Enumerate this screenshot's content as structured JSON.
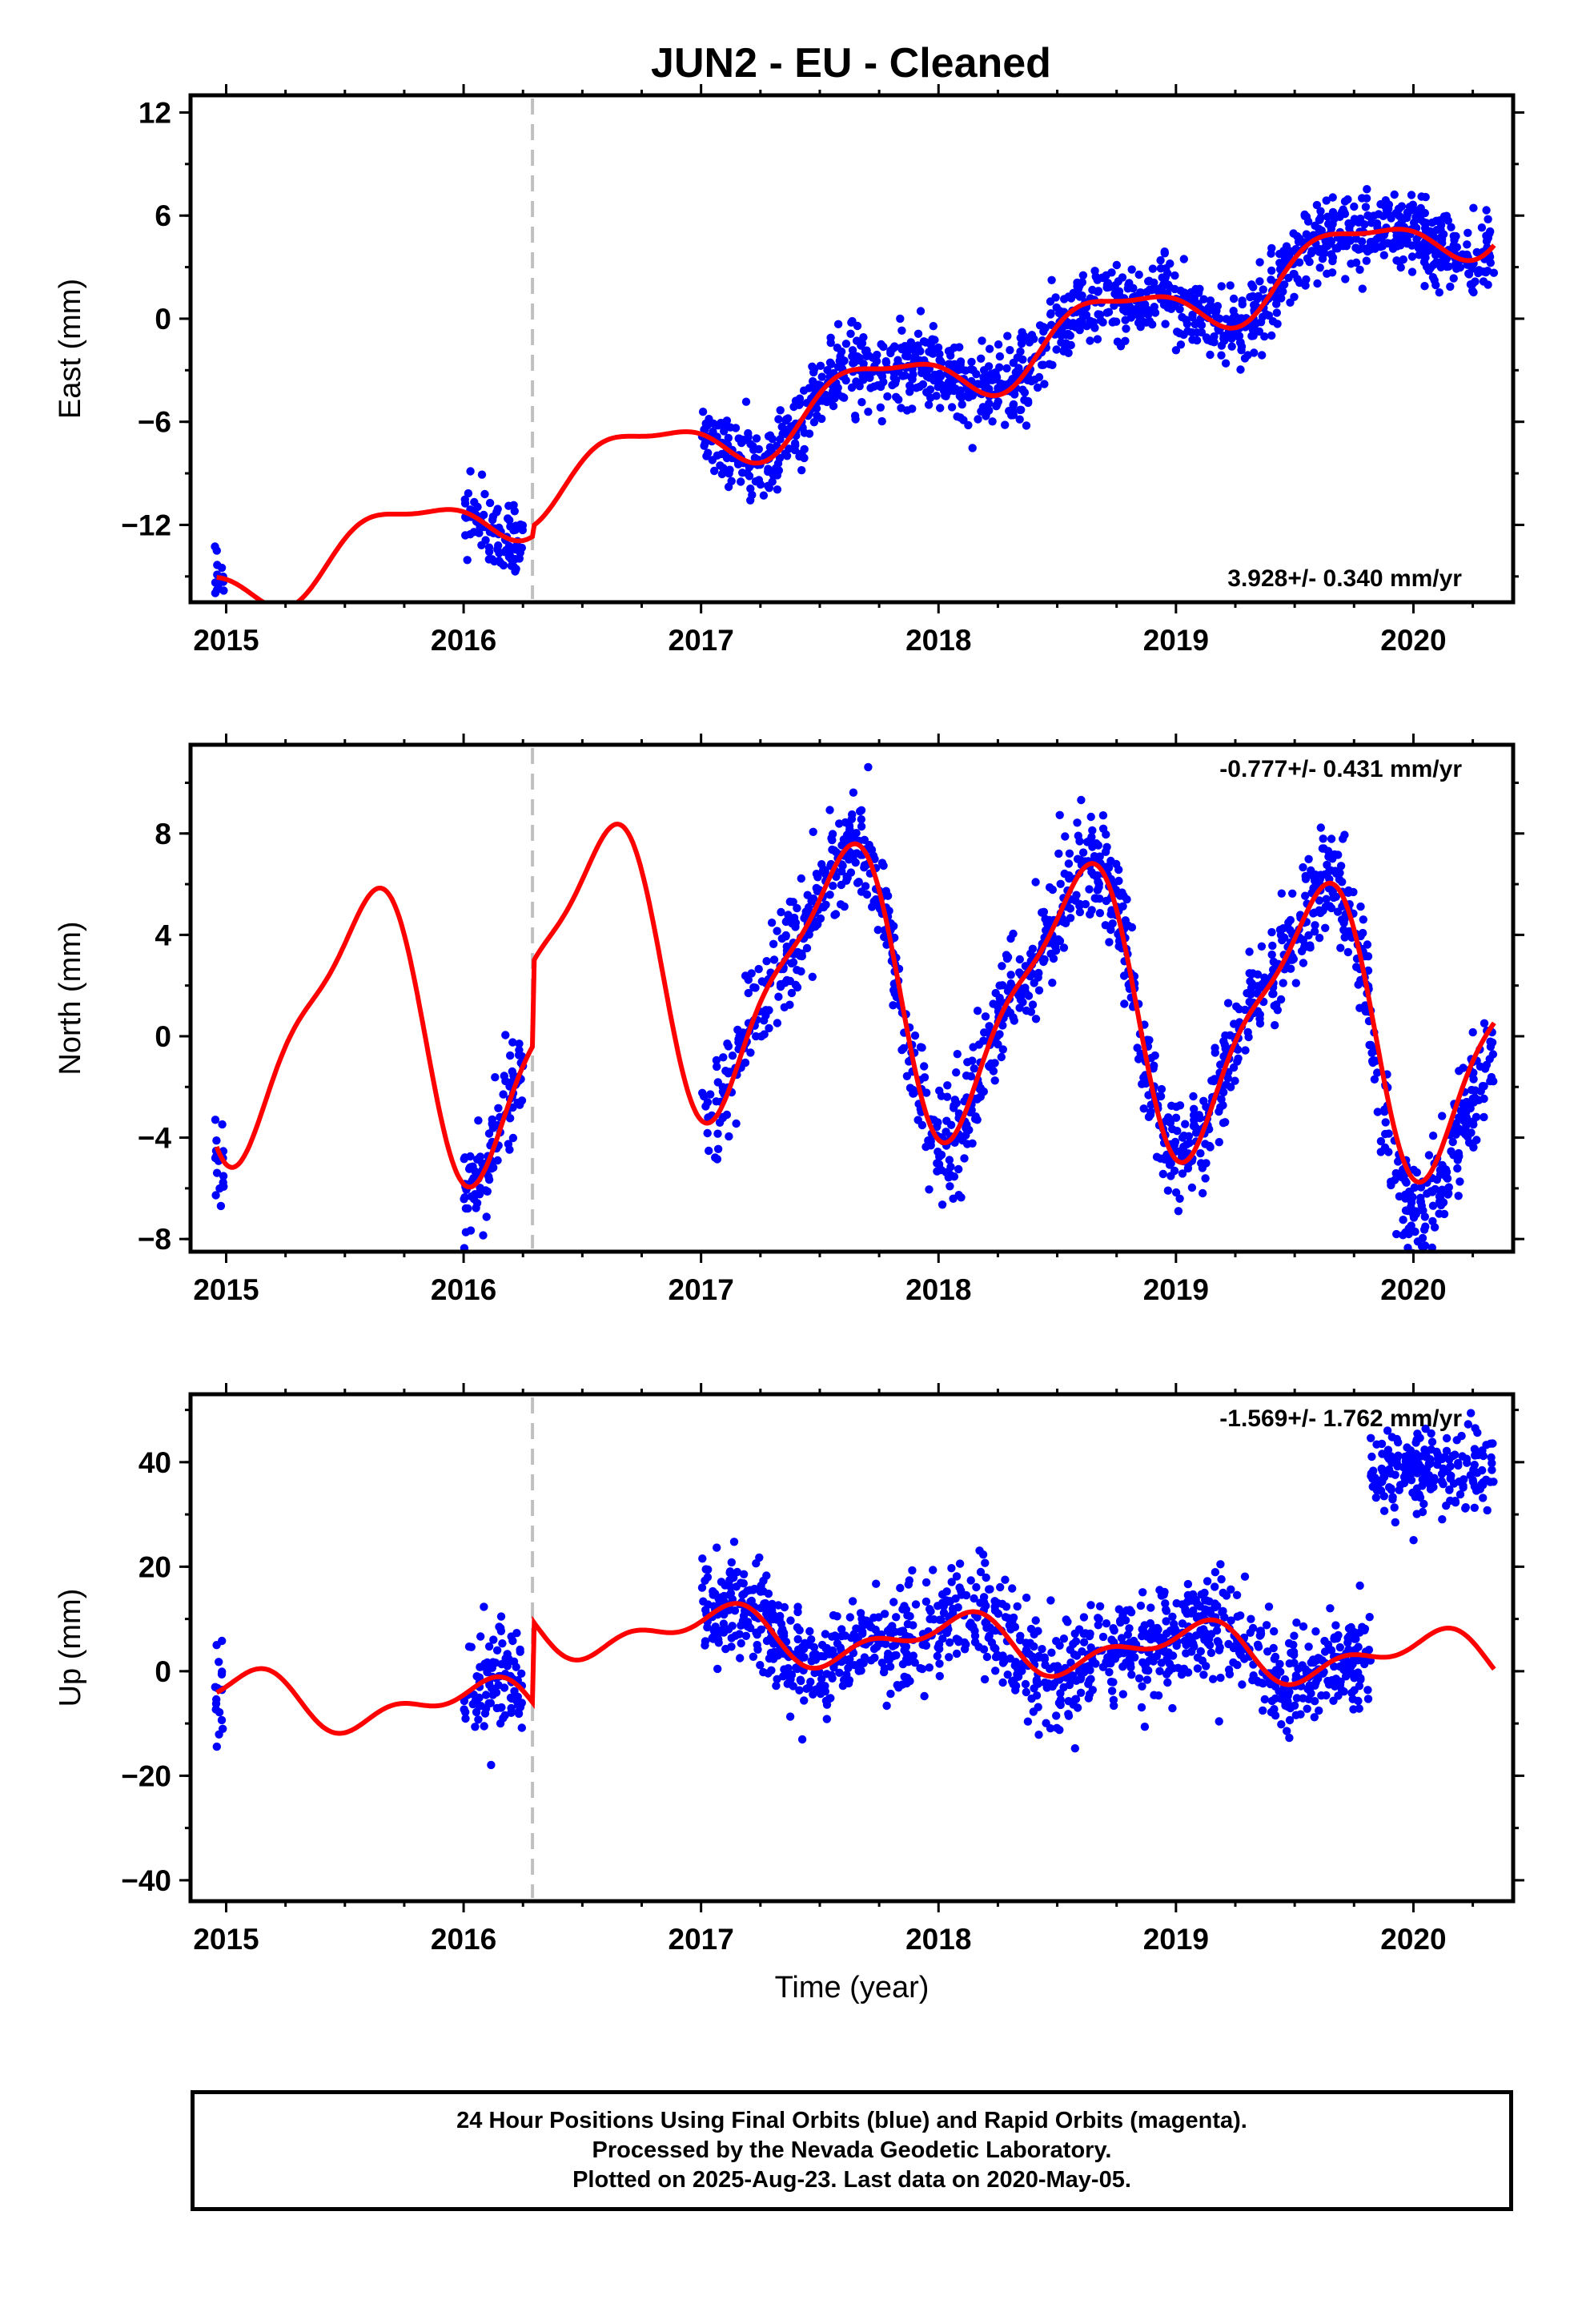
{
  "title": "JUN2  - EU - Cleaned",
  "colors": {
    "data": "#0000ff",
    "model": "#ff0000",
    "step": "#c0c0c0",
    "frame": "#000000"
  },
  "chart_data": [
    {
      "type": "scatter",
      "name": "east",
      "ylabel": "East (mm)",
      "xlabel": "",
      "xlim": [
        2014.85,
        2020.42
      ],
      "ylim": [
        -16.5,
        13.0
      ],
      "xticks": [
        2015,
        2016,
        2017,
        2018,
        2019,
        2020
      ],
      "yticks": [
        -12,
        -6,
        0,
        6,
        12
      ],
      "ytick_labels": [
        "−12",
        "−6",
        "0",
        "6",
        "12"
      ],
      "rate_label": "3.928+/- 0.340 mm/yr",
      "rate_position": "bottom-right",
      "step_epoch": 2016.29,
      "trend": {
        "ref_epoch": 2017.5,
        "offset": -5.1,
        "rate": 3.928,
        "annual": [
          -0.2,
          -1.75
        ],
        "semiannual": [
          0.55,
          0.2
        ],
        "step": 0.6
      },
      "scatter_sd": 1.1,
      "data_points": 1450
    },
    {
      "type": "scatter",
      "name": "north",
      "ylabel": "North (mm)",
      "xlabel": "",
      "xlim": [
        2014.85,
        2020.42
      ],
      "ylim": [
        -8.5,
        11.5
      ],
      "xticks": [
        2015,
        2016,
        2017,
        2018,
        2019,
        2020
      ],
      "yticks": [
        -8,
        -4,
        0,
        4,
        8
      ],
      "ytick_labels": [
        "−8",
        "−4",
        "0",
        "4",
        "8"
      ],
      "rate_label": "-0.777+/- 0.431 mm/yr",
      "rate_position": "top-right",
      "step_epoch": 2016.29,
      "trend": {
        "ref_epoch": 2017.5,
        "offset": 2.2,
        "rate": -0.777,
        "annual": [
          -4.55,
          -2.4
        ],
        "semiannual": [
          -1.35,
          0.5
        ],
        "step": 3.3
      },
      "scatter_sd": 1.0,
      "data_points": 1450
    },
    {
      "type": "scatter",
      "name": "up",
      "ylabel": "Up (mm)",
      "xlabel": "Time (year)",
      "xlim": [
        2014.85,
        2020.42
      ],
      "ylim": [
        -44.0,
        53.0
      ],
      "xticks": [
        2015,
        2016,
        2017,
        2018,
        2019,
        2020
      ],
      "yticks": [
        -40,
        -20,
        0,
        20,
        40
      ],
      "ytick_labels": [
        "−40",
        "−20",
        "0",
        "20",
        "40"
      ],
      "rate_label": "-1.569+/- 1.762 mm/yr",
      "rate_position": "top-right",
      "step_epoch": 2016.29,
      "trend": {
        "ref_epoch": 2017.5,
        "offset": 6.5,
        "rate": -1.569,
        "annual": [
          4.0,
          1.6
        ],
        "semiannual": [
          -1.8,
          1.8
        ],
        "step": 15.6
      },
      "scatter_sd": 5.0,
      "data_points": 1450
    }
  ],
  "data_gaps": [
    [
      2015.0,
      2016.0
    ],
    [
      2016.3,
      2017.0
    ]
  ],
  "data_segments": [
    [
      2014.95,
      2014.99
    ],
    [
      2016.0,
      2016.25
    ],
    [
      2017.0,
      2020.34
    ]
  ],
  "footer": {
    "line1": "24 Hour Positions Using Final Orbits (blue) and Rapid Orbits (magenta).",
    "line2": "Processed by the Nevada Geodetic Laboratory.",
    "line3": "Plotted on 2025-Aug-23. Last data on 2020-May-05."
  }
}
